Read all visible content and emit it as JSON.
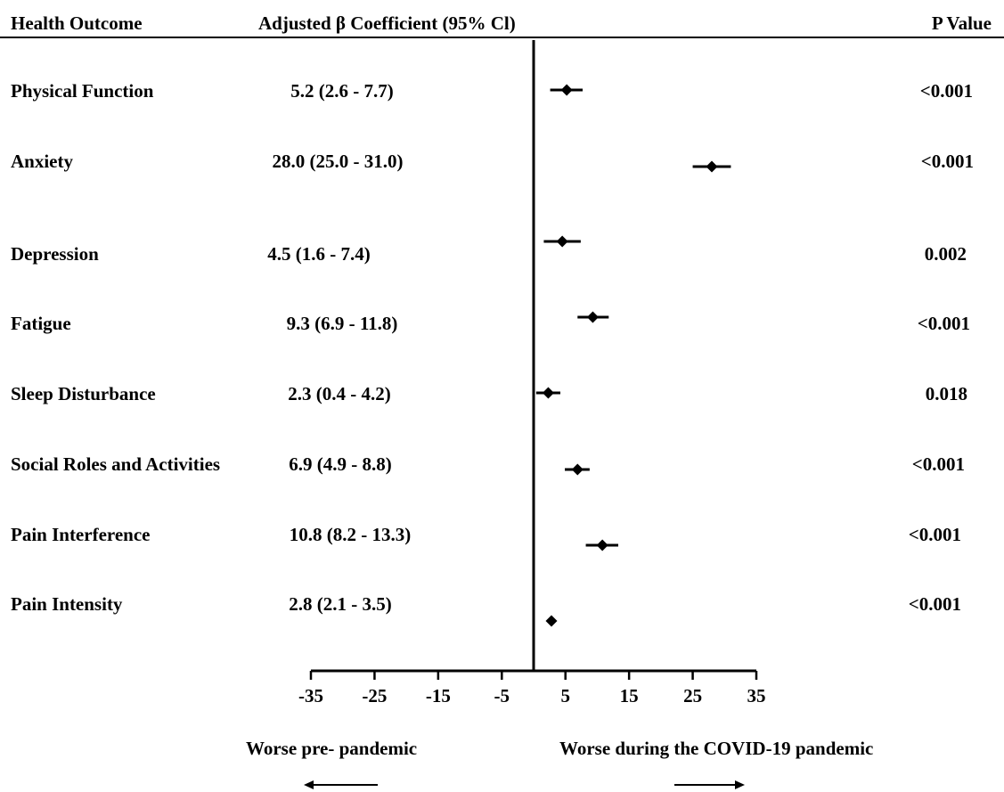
{
  "header": {
    "outcome_label": "Health Outcome",
    "coef_label": "Adjusted  β Coefficient (95% Cl)",
    "p_label": "P Value"
  },
  "rows": [
    {
      "outcome": "Physical Function",
      "ci_text": "5.2 (2.6 - 7.7)",
      "p": "<0.001"
    },
    {
      "outcome": "Anxiety",
      "ci_text": "28.0 (25.0 - 31.0)",
      "p": "<0.001"
    },
    {
      "outcome": "Depression",
      "ci_text": "4.5 (1.6 - 7.4)",
      "p": "0.002"
    },
    {
      "outcome": "Fatigue",
      "ci_text": "9.3 (6.9 - 11.8)",
      "p": "<0.001"
    },
    {
      "outcome": "Sleep Disturbance",
      "ci_text": "2.3 (0.4 - 4.2)",
      "p": "0.018"
    },
    {
      "outcome": "Social Roles and Activities",
      "ci_text": "6.9 (4.9 - 8.8)",
      "p": "<0.001"
    },
    {
      "outcome": "Pain Interference",
      "ci_text": "10.8 (8.2 - 13.3)",
      "p": "<0.001"
    },
    {
      "outcome": "Pain Intensity",
      "ci_text": "2.8 (2.1 - 3.5)",
      "p": "<0.001"
    }
  ],
  "direction": {
    "left": "Worse pre- pandemic",
    "right": "Worse during the COVID-19 pandemic"
  },
  "chart_data": {
    "type": "forest",
    "xlim": [
      -35,
      35
    ],
    "xticks": [
      -35,
      -25,
      -15,
      -5,
      5,
      15,
      25,
      35
    ],
    "reference_line": 0,
    "marker": "diamond",
    "color": "#000000",
    "series": [
      {
        "values": [
          {
            "category": "Physical Function",
            "estimate": 5.2,
            "lower": 2.6,
            "upper": 7.7
          },
          {
            "category": "Anxiety",
            "estimate": 28.0,
            "lower": 25.0,
            "upper": 31.0
          },
          {
            "category": "Depression",
            "estimate": 4.5,
            "lower": 1.6,
            "upper": 7.4
          },
          {
            "category": "Fatigue",
            "estimate": 9.3,
            "lower": 6.9,
            "upper": 11.8
          },
          {
            "category": "Sleep Disturbance",
            "estimate": 2.3,
            "lower": 0.4,
            "upper": 4.2
          },
          {
            "category": "Social Roles and Activities",
            "estimate": 6.9,
            "lower": 4.9,
            "upper": 8.8
          },
          {
            "category": "Pain Interference",
            "estimate": 10.8,
            "lower": 8.2,
            "upper": 13.3
          },
          {
            "category": "Pain Intensity",
            "estimate": 2.8,
            "lower": 2.1,
            "upper": 3.5
          }
        ]
      }
    ]
  }
}
